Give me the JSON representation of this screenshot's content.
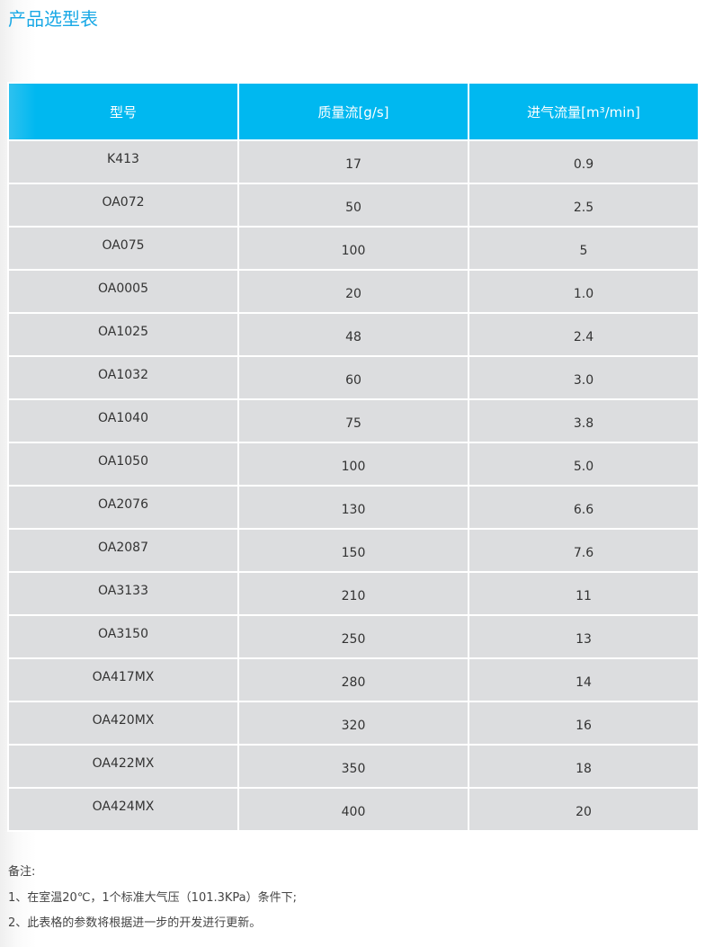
{
  "title": "产品选型表",
  "table": {
    "headers": [
      "型号",
      "质量流[g/s]",
      "进气流量[m³/min]"
    ],
    "rows": [
      [
        "K413",
        "17",
        "0.9"
      ],
      [
        "OA072",
        "50",
        "2.5"
      ],
      [
        "OA075",
        "100",
        "5"
      ],
      [
        "OA0005",
        "20",
        "1.0"
      ],
      [
        "OA1025",
        "48",
        "2.4"
      ],
      [
        "OA1032",
        "60",
        "3.0"
      ],
      [
        "OA1040",
        "75",
        "3.8"
      ],
      [
        "OA1050",
        "100",
        "5.0"
      ],
      [
        "OA2076",
        "130",
        "6.6"
      ],
      [
        "OA2087",
        "150",
        "7.6"
      ],
      [
        "OA3133",
        "210",
        "11"
      ],
      [
        "OA3150",
        "250",
        "13"
      ],
      [
        "OA417MX",
        "280",
        "14"
      ],
      [
        "OA420MX",
        "320",
        "16"
      ],
      [
        "OA422MX",
        "350",
        "18"
      ],
      [
        "OA424MX",
        "400",
        "20"
      ]
    ]
  },
  "notes": {
    "label": "备注:",
    "items": [
      "1、在室温20℃，1个标准大气压（101.3KPa）条件下;",
      "2、此表格的参数将根据进一步的开发进行更新。"
    ]
  },
  "colors": {
    "accent": "#00b8f0",
    "title": "#1aa9e6",
    "row_bg": "#dcdddf"
  }
}
